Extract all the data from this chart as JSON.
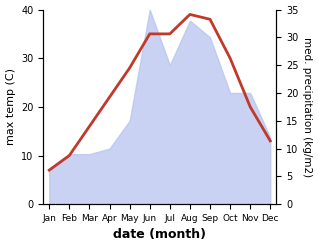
{
  "months": [
    "Jan",
    "Feb",
    "Mar",
    "Apr",
    "May",
    "Jun",
    "Jul",
    "Aug",
    "Sep",
    "Oct",
    "Nov",
    "Dec"
  ],
  "temp": [
    7,
    10,
    16,
    22,
    28,
    35,
    35,
    39,
    38,
    30,
    20,
    13
  ],
  "precip": [
    6,
    9,
    9,
    10,
    15,
    35,
    25,
    33,
    30,
    20,
    20,
    12
  ],
  "temp_color": "#c0392b",
  "precip_fill_color": "#b8c4ef",
  "precip_fill_alpha": 0.75,
  "xlabel": "date (month)",
  "ylabel_left": "max temp (C)",
  "ylabel_right": "med. precipitation (kg/m2)",
  "ylim_left": [
    0,
    40
  ],
  "ylim_right": [
    0,
    35
  ],
  "yticks_left": [
    0,
    10,
    20,
    30,
    40
  ],
  "yticks_right": [
    0,
    5,
    10,
    15,
    20,
    25,
    30,
    35
  ],
  "bg_color": "#ffffff",
  "line_width": 2.0
}
